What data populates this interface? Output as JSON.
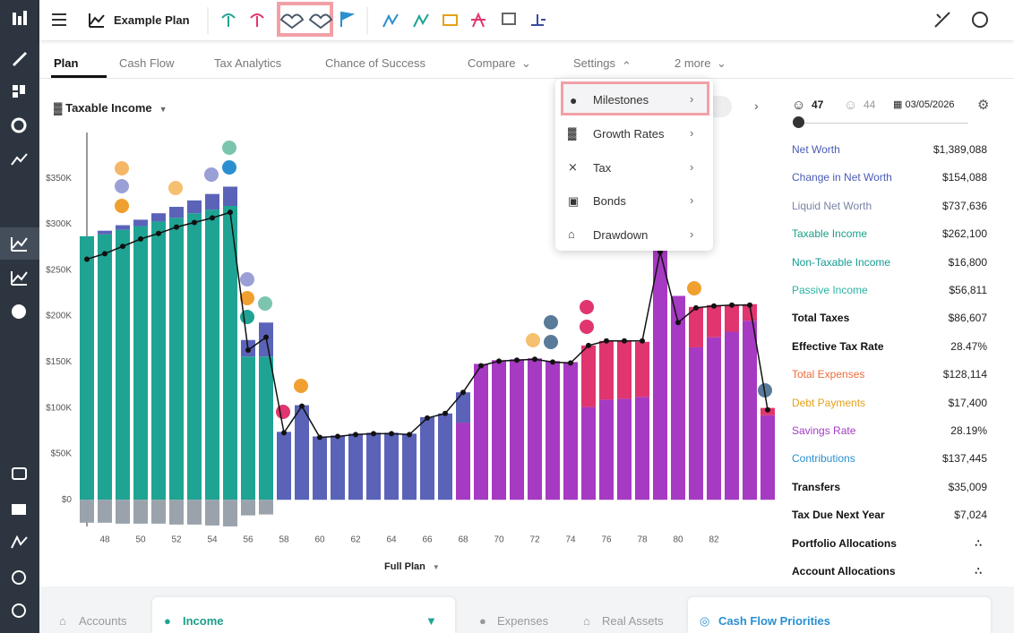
{
  "header": {
    "title": "Example Plan"
  },
  "tabs": [
    "Plan",
    "Cash Flow",
    "Tax Analytics",
    "Chance of Success",
    "Compare",
    "Settings",
    "2 more"
  ],
  "chart_controls": {
    "metric": "Taxable Income",
    "range": "Full Plan"
  },
  "menu": {
    "items": [
      "Milestones",
      "Growth Rates",
      "Tax",
      "Bonds",
      "Drawdown"
    ]
  },
  "chart_data": {
    "type": "stacked-bar",
    "categories": [
      null,
      48,
      null,
      50,
      null,
      52,
      null,
      54,
      null,
      56,
      null,
      58,
      null,
      60,
      null,
      62,
      null,
      64,
      null,
      66,
      null,
      68,
      null,
      70,
      null,
      72,
      null,
      74,
      null,
      76,
      null,
      78,
      null,
      80,
      null,
      82,
      null,
      null,
      null
    ],
    "series": [
      {
        "color": "#1fa393",
        "values": [
          287000,
          289000,
          294000,
          298000,
          303000,
          307000,
          312000,
          316000,
          320000,
          156000,
          156000,
          null,
          null,
          null,
          null,
          null,
          null,
          null,
          null,
          null,
          null,
          null,
          null,
          null,
          null,
          null,
          null,
          null,
          null,
          null,
          null,
          null,
          null,
          null,
          null,
          null,
          null,
          null,
          null
        ]
      },
      {
        "color": "#a63ac2",
        "values": [
          null,
          null,
          null,
          null,
          null,
          null,
          null,
          null,
          null,
          null,
          null,
          null,
          null,
          null,
          null,
          null,
          null,
          null,
          null,
          null,
          null,
          84000,
          148000,
          152000,
          153000,
          154000,
          151000,
          150000,
          101000,
          109000,
          110000,
          112000,
          276000,
          222000,
          166000,
          177000,
          183000,
          195000,
          92000
        ]
      },
      {
        "color": "#5b63b8",
        "values": [
          null,
          4000,
          5000,
          7000,
          9000,
          12000,
          14000,
          17000,
          21000,
          18000,
          37000,
          74000,
          103000,
          69000,
          70000,
          72000,
          73000,
          73000,
          72000,
          90000,
          94000,
          33000,
          null,
          null,
          null,
          null,
          null,
          null,
          null,
          null,
          null,
          null,
          null,
          null,
          null,
          null,
          null,
          null,
          null
        ]
      },
      {
        "color": "#e0356e",
        "values": [
          null,
          null,
          null,
          null,
          null,
          null,
          null,
          null,
          null,
          null,
          null,
          null,
          null,
          null,
          null,
          null,
          null,
          null,
          null,
          null,
          null,
          null,
          null,
          null,
          null,
          null,
          null,
          null,
          67000,
          64000,
          63000,
          60000,
          null,
          null,
          44000,
          35000,
          29000,
          18000,
          8000
        ]
      },
      {
        "color": "#9aa3ab",
        "values": [
          -25000,
          -25000,
          -26000,
          -26000,
          -26000,
          -27000,
          -27000,
          -28000,
          -29000,
          -17000,
          -16000,
          null,
          null,
          null,
          null,
          null,
          null,
          null,
          null,
          null,
          null,
          null,
          null,
          null,
          null,
          null,
          null,
          null,
          null,
          null,
          null,
          null,
          null,
          null,
          null,
          null,
          null,
          null,
          null
        ]
      },
      {
        "type": "line",
        "color": "#111111",
        "values": [
          262000,
          268000,
          276000,
          284000,
          290000,
          297000,
          302000,
          307000,
          313000,
          163000,
          177000,
          73000,
          102000,
          68000,
          69000,
          71000,
          72000,
          72000,
          71000,
          89000,
          94000,
          117000,
          146000,
          151000,
          152000,
          153000,
          150000,
          149000,
          168000,
          173000,
          173000,
          173000,
          270000,
          193000,
          209000,
          211000,
          212000,
          212000,
          98000
        ]
      }
    ],
    "ylim": [
      -31000,
      398000
    ],
    "yticks": [
      {
        "value": 0,
        "label": "$0"
      },
      {
        "value": 50000,
        "label": "$50K"
      },
      {
        "value": 100000,
        "label": "$100K"
      },
      {
        "value": 150000,
        "label": "$150K"
      },
      {
        "value": 200000,
        "label": "$200K"
      },
      {
        "value": 250000,
        "label": "$250K"
      },
      {
        "value": 300000,
        "label": "$300K"
      },
      {
        "value": 350000,
        "label": "$350K"
      }
    ]
  },
  "panel": {
    "age": 47,
    "partner_age": 44,
    "date": "03/05/2026",
    "rows": [
      {
        "label": "Net Worth",
        "value": "$1,389,088",
        "color": "#4a5bb5"
      },
      {
        "label": "Change in Net Worth",
        "value": "$154,088",
        "color": "#4a5bb5"
      },
      {
        "label": "Liquid Net Worth",
        "value": "$737,636",
        "color": "#7a84a6"
      },
      {
        "label": "Taxable Income",
        "value": "$262,100",
        "color": "#1a9f88"
      },
      {
        "label": "Non-Taxable Income",
        "value": "$16,800",
        "color": "#139c93"
      },
      {
        "label": "Passive Income",
        "value": "$56,811",
        "color": "#2ab3a2"
      },
      {
        "label": "Total Taxes",
        "value": "$86,607",
        "color": "#111111"
      },
      {
        "label": "Effective Tax Rate",
        "value": "28.47%",
        "color": "#111111"
      },
      {
        "label": "Total Expenses",
        "value": "$128,114",
        "color": "#ee6b3a"
      },
      {
        "label": "Debt Payments",
        "value": "$17,400",
        "color": "#e6a11a"
      },
      {
        "label": "Savings Rate",
        "value": "28.19%",
        "color": "#a23cc4"
      },
      {
        "label": "Contributions",
        "value": "$137,445",
        "color": "#2a8fd0"
      },
      {
        "label": "Transfers",
        "value": "$35,009",
        "color": "#111111"
      },
      {
        "label": "Tax Due Next Year",
        "value": "$7,024",
        "color": "#111111"
      },
      {
        "label": "Portfolio Allocations",
        "color": "#111111"
      },
      {
        "label": "Account Allocations",
        "color": "#111111"
      }
    ]
  },
  "bottom_tabs": [
    "Accounts",
    "Income",
    "Expenses",
    "Real Assets",
    "Cash Flow Priorities"
  ]
}
